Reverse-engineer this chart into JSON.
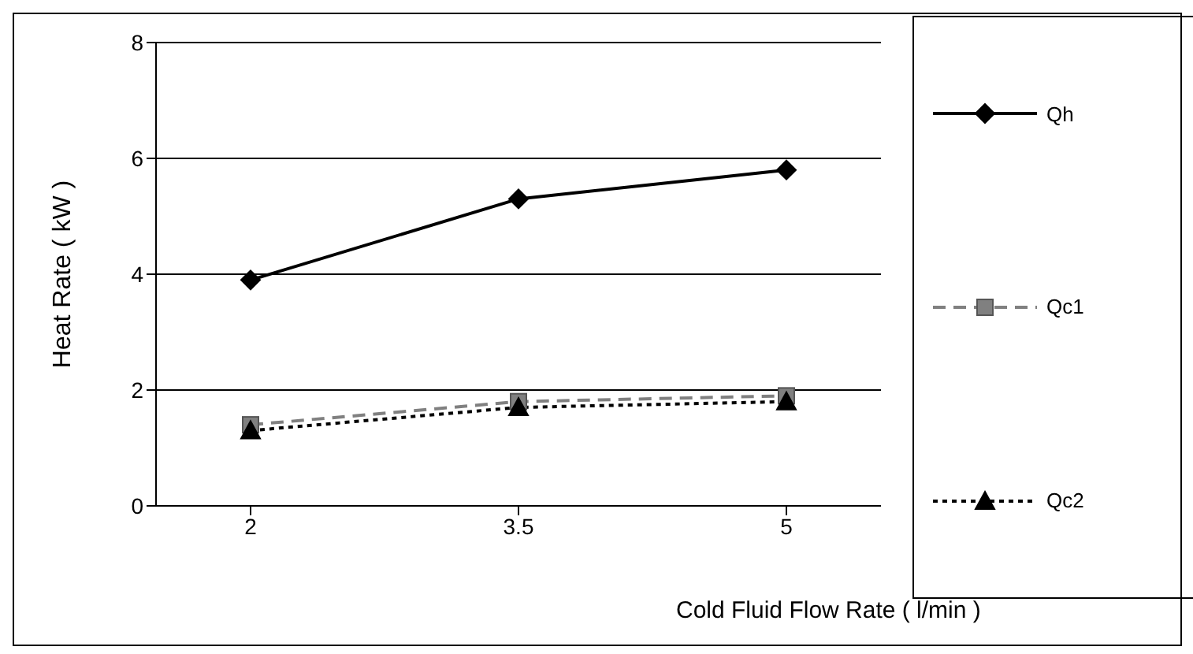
{
  "chart_data": {
    "type": "line",
    "xlabel": "Cold Fluid Flow Rate ( l/min )",
    "ylabel": "Heat Rate ( kW )",
    "categories": [
      "2",
      "3.5",
      "5"
    ],
    "series": [
      {
        "name": "Qh",
        "color": "#000000",
        "values": [
          3.9,
          5.3,
          5.8
        ],
        "marker": "diamond",
        "line_style": "solid"
      },
      {
        "name": "Qc1",
        "color": "#808080",
        "values": [
          1.4,
          1.8,
          1.9
        ],
        "marker": "square",
        "line_style": "dashed"
      },
      {
        "name": "Qc2",
        "color": "#000000",
        "values": [
          1.3,
          1.7,
          1.8
        ],
        "marker": "triangle",
        "line_style": "dotted"
      }
    ],
    "ylim": [
      0,
      8
    ],
    "yticks": [
      0,
      2,
      4,
      6,
      8
    ],
    "grid": "y",
    "legend": "right"
  }
}
